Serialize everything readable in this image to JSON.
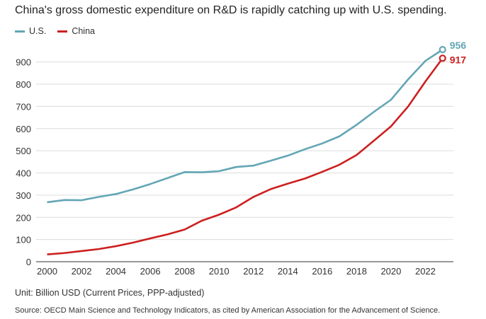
{
  "chart_data": {
    "type": "line",
    "title": "China's gross domestic expenditure on R&D is rapidly catching up with U.S. spending.",
    "xlabel": "",
    "ylabel": "",
    "unit_note": "Unit: Billion USD (Current Prices, PPP-adjusted)",
    "source": "Source: OECD Main Science and Technology Indicators, as cited by American Association for the Advancement of Science.",
    "legend_position": "top-left",
    "grid": true,
    "xlim": [
      2000,
      2023
    ],
    "ylim": [
      0,
      960
    ],
    "x_ticks": [
      2000,
      2002,
      2004,
      2006,
      2008,
      2010,
      2012,
      2014,
      2016,
      2018,
      2020,
      2022
    ],
    "y_ticks": [
      0,
      100,
      200,
      300,
      400,
      500,
      600,
      700,
      800,
      900
    ],
    "x": [
      2000,
      2001,
      2002,
      2003,
      2004,
      2005,
      2006,
      2007,
      2008,
      2009,
      2010,
      2011,
      2012,
      2013,
      2014,
      2015,
      2016,
      2017,
      2018,
      2019,
      2020,
      2021,
      2022,
      2023
    ],
    "series": [
      {
        "name": "U.S.",
        "color": "#62a6b5",
        "end_label": "956",
        "values": [
          268,
          278,
          277,
          292,
          305,
          326,
          350,
          377,
          404,
          403,
          408,
          427,
          433,
          455,
          478,
          507,
          533,
          565,
          617,
          675,
          730,
          822,
          905,
          956
        ]
      },
      {
        "name": "China",
        "color": "#cc2020",
        "end_label": "917",
        "values": [
          33,
          39,
          48,
          57,
          70,
          86,
          105,
          123,
          145,
          185,
          212,
          245,
          292,
          327,
          352,
          375,
          405,
          437,
          481,
          545,
          610,
          700,
          812,
          917
        ]
      }
    ]
  }
}
